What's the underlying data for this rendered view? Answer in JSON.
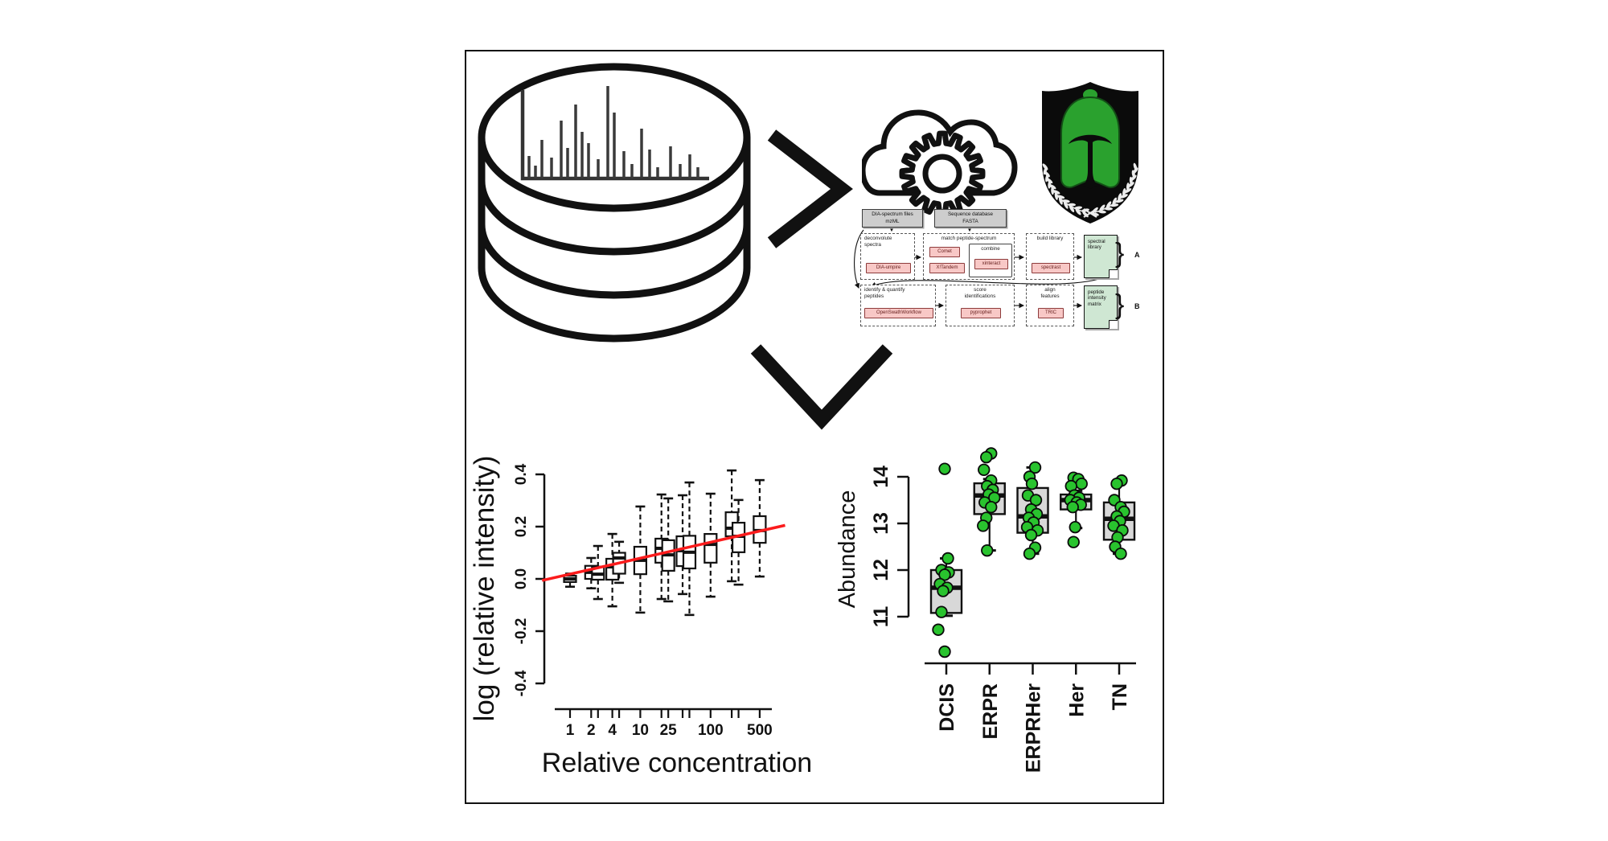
{
  "workflow": {
    "inputs": [
      {
        "label": "DIA-spectrum files\nmzML"
      },
      {
        "label": "Sequence database\nFASTA"
      }
    ],
    "row_a": {
      "tag": "A",
      "bracket": "}",
      "step1": {
        "label": "deconvolute\nspectra",
        "tool": "DIA-umpire"
      },
      "step2": {
        "label": "match peptide-spectrum",
        "tool1": "Comet",
        "tool2": "X!Tandem",
        "combine_label": "combine",
        "combine_tool": "xinteract"
      },
      "step3": {
        "label": "build library",
        "tool": "spectrast"
      },
      "output": {
        "label": "spectral\nlibrary"
      }
    },
    "row_b": {
      "tag": "B",
      "bracket": "}",
      "step1": {
        "label": "identify & quantify\npeptides",
        "tool": "OpenSwathWorkflow"
      },
      "step2": {
        "label": "score\nidentifications",
        "tool": "pyprophet"
      },
      "step3": {
        "label": "align\nfeatures",
        "tool": "TRIC"
      },
      "output": {
        "label": "peptide\nintensity\nmatrix"
      }
    }
  },
  "db_spectrum": {
    "bars": [
      [
        70,
        28
      ],
      [
        78,
        16
      ],
      [
        86,
        48
      ],
      [
        98,
        26
      ],
      [
        110,
        72
      ],
      [
        118,
        38
      ],
      [
        128,
        92
      ],
      [
        136,
        58
      ],
      [
        144,
        44
      ],
      [
        156,
        24
      ],
      [
        168,
        115
      ],
      [
        176,
        82
      ],
      [
        188,
        34
      ],
      [
        198,
        18
      ],
      [
        210,
        62
      ],
      [
        220,
        36
      ],
      [
        230,
        14
      ],
      [
        246,
        40
      ],
      [
        258,
        18
      ],
      [
        270,
        30
      ],
      [
        280,
        14
      ]
    ]
  },
  "colors": {
    "accent_red": "#fb1b1c",
    "point_green": "#29c32e",
    "shield_green": "#2aa12e",
    "doc_green": "#cfe7d3",
    "tool_pink": "#f8c8c6"
  },
  "chart_data": [
    {
      "type": "box",
      "title": "",
      "xlabel": "Relative concentration",
      "ylabel": "log (relative intensity)",
      "x_scale": "log",
      "xlim": [
        0.4,
        1150
      ],
      "ylim": [
        -0.5,
        0.45
      ],
      "grid": false,
      "yticks": [
        [
          -0.4,
          "-0.4"
        ],
        [
          -0.2,
          "-0.2"
        ],
        [
          0,
          "0.0"
        ],
        [
          0.2,
          "0.2"
        ],
        [
          0.4,
          "0.4"
        ]
      ],
      "xticks_labeled": [
        [
          1,
          "1"
        ],
        [
          2,
          "2"
        ],
        [
          4,
          "4"
        ],
        [
          10,
          "10"
        ],
        [
          25,
          "25"
        ],
        [
          100,
          "100"
        ],
        [
          500,
          "500"
        ]
      ],
      "boxes": [
        {
          "conc": 1,
          "lo": -0.03,
          "q1": -0.012,
          "med": 0.0,
          "q3": 0.012,
          "hi": 0.02
        },
        {
          "conc": 2,
          "lo": -0.036,
          "q1": 0.0,
          "med": 0.025,
          "q3": 0.05,
          "hi": 0.08
        },
        {
          "conc": 2.5,
          "lo": -0.077,
          "q1": -0.003,
          "med": 0.018,
          "q3": 0.047,
          "hi": 0.126
        },
        {
          "conc": 4,
          "lo": -0.105,
          "q1": -0.003,
          "med": 0.046,
          "q3": 0.077,
          "hi": 0.172
        },
        {
          "conc": 5,
          "lo": -0.015,
          "q1": 0.02,
          "med": 0.08,
          "q3": 0.1,
          "hi": 0.142
        },
        {
          "conc": 10,
          "lo": -0.129,
          "q1": 0.018,
          "med": 0.071,
          "q3": 0.123,
          "hi": 0.277
        },
        {
          "conc": 20,
          "lo": -0.077,
          "q1": 0.062,
          "med": 0.117,
          "q3": 0.154,
          "hi": 0.323
        },
        {
          "conc": 25,
          "lo": -0.086,
          "q1": 0.031,
          "med": 0.092,
          "q3": 0.148,
          "hi": 0.308
        },
        {
          "conc": 40,
          "lo": -0.058,
          "q1": 0.049,
          "med": 0.108,
          "q3": 0.163,
          "hi": 0.32
        },
        {
          "conc": 50,
          "lo": -0.138,
          "q1": 0.04,
          "med": 0.102,
          "q3": 0.165,
          "hi": 0.369
        },
        {
          "conc": 100,
          "lo": -0.068,
          "q1": 0.062,
          "med": 0.132,
          "q3": 0.172,
          "hi": 0.326
        },
        {
          "conc": 200,
          "lo": -0.009,
          "q1": 0.163,
          "med": 0.194,
          "q3": 0.255,
          "hi": 0.415
        },
        {
          "conc": 250,
          "lo": -0.022,
          "q1": 0.102,
          "med": 0.163,
          "q3": 0.215,
          "hi": 0.302
        },
        {
          "conc": 500,
          "lo": 0.009,
          "q1": 0.138,
          "med": 0.185,
          "q3": 0.24,
          "hi": 0.378
        }
      ],
      "fit_line": {
        "x1": 0.4,
        "y1": -0.006,
        "x2": 1150,
        "y2": 0.205,
        "color": "#fb1b1c"
      }
    },
    {
      "type": "box-jitter",
      "title": "",
      "xlabel": "",
      "ylabel": "Abundance",
      "ylim": [
        10,
        14.7
      ],
      "grid": false,
      "yticks": [
        [
          11,
          "11"
        ],
        [
          12,
          "12"
        ],
        [
          13,
          "13"
        ],
        [
          14,
          "14"
        ]
      ],
      "point_color": "#29c32e",
      "box_fill": "#d8d8d8",
      "categories": [
        {
          "label": "DCIS",
          "box": {
            "lo": 11.02,
            "q1": 11.08,
            "med": 11.62,
            "q3": 12.0,
            "hi": 12.25
          },
          "points": [
            [
              14.17,
              -2
            ],
            [
              12.25,
              2
            ],
            [
              12.0,
              -6
            ],
            [
              11.95,
              3
            ],
            [
              11.9,
              -2
            ],
            [
              11.7,
              -8
            ],
            [
              11.62,
              1
            ],
            [
              11.55,
              -4
            ],
            [
              11.1,
              -6
            ],
            [
              10.72,
              -10
            ],
            [
              10.25,
              -2
            ]
          ]
        },
        {
          "label": "ERPR",
          "box": {
            "lo": 12.42,
            "q1": 13.2,
            "med": 13.6,
            "q3": 13.86,
            "hi": 13.95
          },
          "points": [
            [
              14.5,
              2
            ],
            [
              14.42,
              -4
            ],
            [
              14.15,
              -7
            ],
            [
              13.92,
              2
            ],
            [
              13.8,
              -3
            ],
            [
              13.72,
              4
            ],
            [
              13.62,
              -1
            ],
            [
              13.55,
              6
            ],
            [
              13.45,
              -6
            ],
            [
              13.35,
              2
            ],
            [
              13.12,
              -4
            ],
            [
              12.95,
              -8
            ],
            [
              12.42,
              -3
            ]
          ]
        },
        {
          "label": "ERPRHer",
          "box": {
            "lo": 12.35,
            "q1": 12.8,
            "med": 13.15,
            "q3": 13.76,
            "hi": 14.2
          },
          "points": [
            [
              14.2,
              3
            ],
            [
              14.0,
              -4
            ],
            [
              13.85,
              -1
            ],
            [
              13.6,
              -6
            ],
            [
              13.5,
              4
            ],
            [
              13.3,
              -2
            ],
            [
              13.2,
              5
            ],
            [
              13.12,
              -5
            ],
            [
              13.02,
              1
            ],
            [
              12.92,
              -7
            ],
            [
              12.85,
              6
            ],
            [
              12.75,
              -2
            ],
            [
              12.48,
              3
            ],
            [
              12.35,
              -4
            ]
          ]
        },
        {
          "label": "Her",
          "box": {
            "lo": 12.9,
            "q1": 13.3,
            "med": 13.5,
            "q3": 13.62,
            "hi": 13.7
          },
          "points": [
            [
              13.98,
              -3
            ],
            [
              13.95,
              3
            ],
            [
              13.85,
              7
            ],
            [
              13.8,
              -6
            ],
            [
              13.6,
              -2
            ],
            [
              13.55,
              4
            ],
            [
              13.5,
              -7
            ],
            [
              13.45,
              1
            ],
            [
              13.4,
              6
            ],
            [
              13.35,
              -4
            ],
            [
              12.92,
              -1
            ],
            [
              12.6,
              -3
            ]
          ]
        },
        {
          "label": "TN",
          "box": {
            "lo": 12.35,
            "q1": 12.65,
            "med": 13.1,
            "q3": 13.45,
            "hi": 13.9
          },
          "points": [
            [
              13.92,
              3
            ],
            [
              13.85,
              -3
            ],
            [
              13.5,
              -6
            ],
            [
              13.35,
              2
            ],
            [
              13.25,
              6
            ],
            [
              13.15,
              -3
            ],
            [
              13.05,
              1
            ],
            [
              12.95,
              -7
            ],
            [
              12.85,
              4
            ],
            [
              12.7,
              -2
            ],
            [
              12.5,
              -5
            ],
            [
              12.35,
              2
            ]
          ]
        }
      ]
    }
  ]
}
